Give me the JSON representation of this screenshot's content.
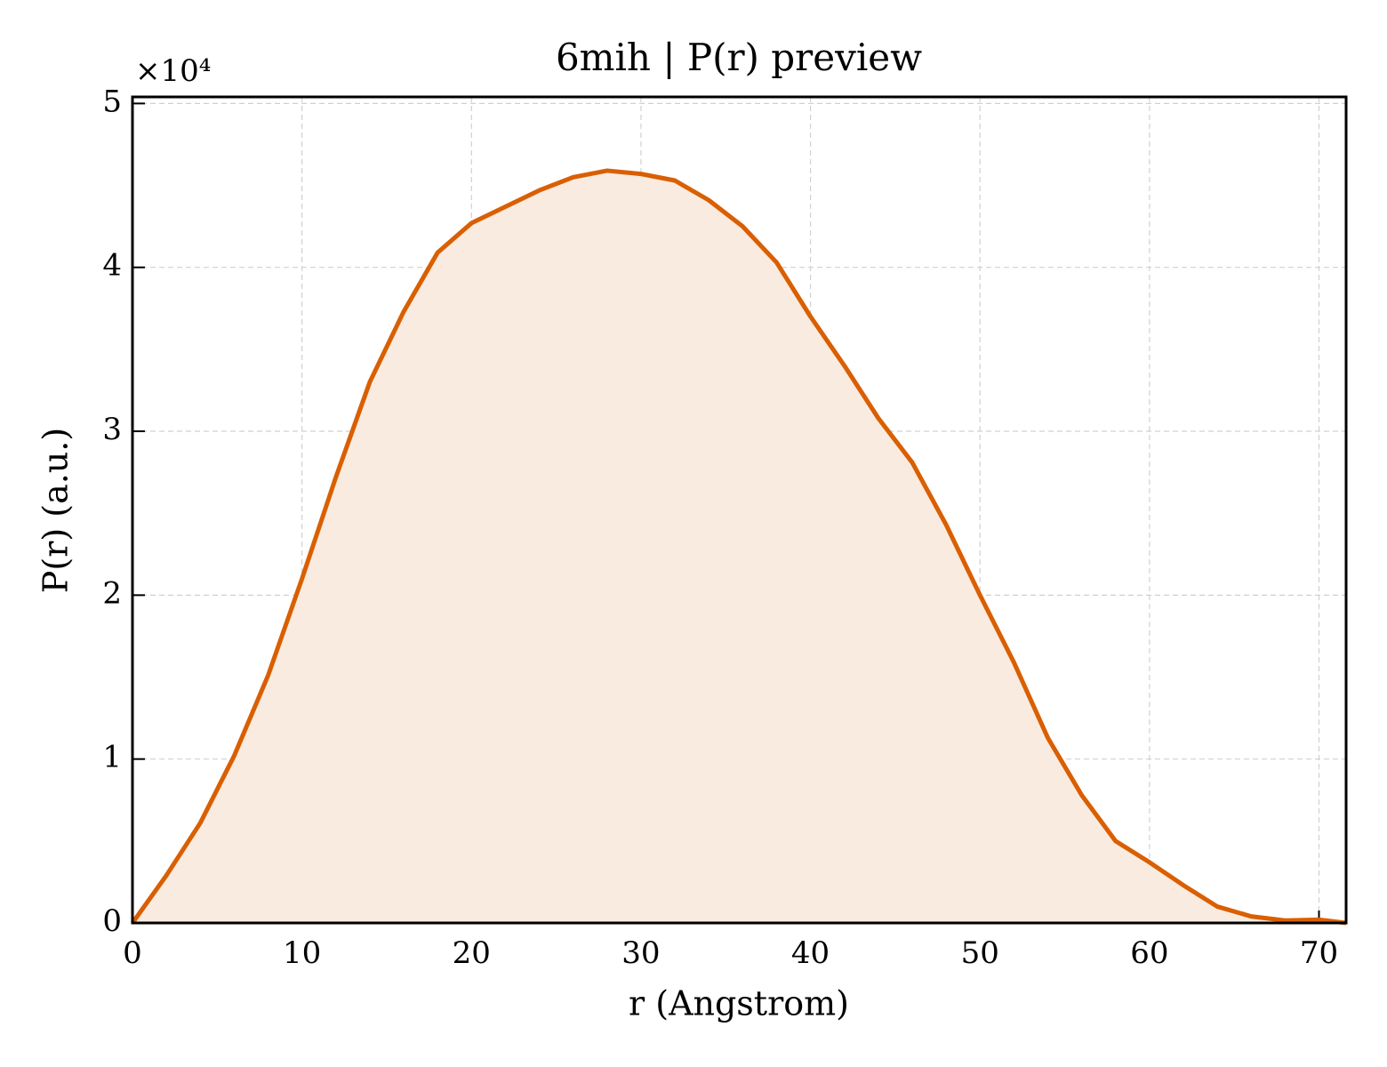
{
  "chart_data": {
    "type": "area",
    "title": "6mih | P(r) preview",
    "xlabel": "r (Angstrom)",
    "ylabel": "P(r) (a.u.)",
    "offset_text": "×10⁴",
    "x": [
      0,
      2,
      4,
      6,
      8,
      10,
      12,
      14,
      16,
      18,
      20,
      22,
      24,
      26,
      28,
      30,
      32,
      34,
      36,
      38,
      40,
      42,
      44,
      46,
      48,
      50,
      52,
      54,
      56,
      58,
      60,
      62,
      64,
      66,
      68,
      70,
      71.6
    ],
    "values": [
      0,
      2900,
      6100,
      10200,
      15100,
      21000,
      27200,
      33000,
      37300,
      40900,
      42700,
      43700,
      44700,
      45500,
      45900,
      45700,
      45300,
      44100,
      42500,
      40300,
      37000,
      34000,
      30800,
      28100,
      24300,
      20000,
      15900,
      11300,
      7800,
      5000,
      3700,
      2300,
      1000,
      400,
      150,
      200,
      0
    ],
    "color": "#d95f02",
    "fill_color": "#f9ebe0",
    "xlim": [
      0,
      71.6
    ],
    "xticks": [
      0,
      10,
      20,
      30,
      40,
      50,
      60,
      70
    ],
    "ylim": [
      0,
      50400
    ],
    "yticks": [
      {
        "value": 0,
        "label": "0"
      },
      {
        "value": 10000,
        "label": "1"
      },
      {
        "value": 20000,
        "label": "2"
      },
      {
        "value": 30000,
        "label": "3"
      },
      {
        "value": 40000,
        "label": "4"
      },
      {
        "value": 50000,
        "label": "5"
      }
    ],
    "grid": true
  }
}
